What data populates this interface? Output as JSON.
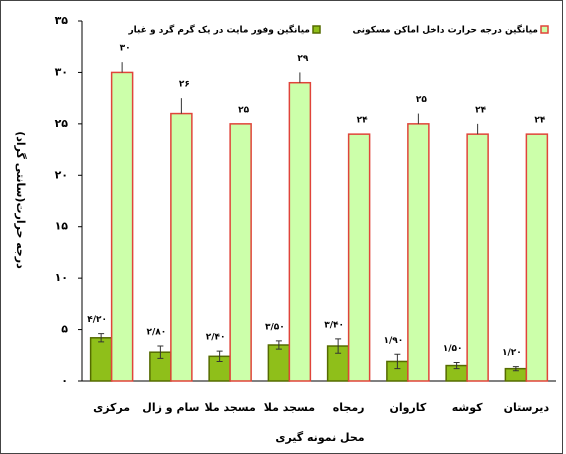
{
  "chart_data": {
    "type": "bar",
    "ylabel": "درجه حرارت(سانتی گراد)",
    "xlabel": "محل نمونه گیری",
    "categories": [
      "مرکزی",
      "سام و زال",
      "مسجد ملا",
      "مسجد ملا",
      "رمجاه",
      "کاروان",
      "کوشه",
      "دیرستان"
    ],
    "series": [
      {
        "name": "میانگین وفور مایت در یک گرم گرد و غبار",
        "color": "#8fbf1a",
        "edge": "#556b00",
        "values": [
          4.2,
          2.8,
          2.4,
          3.5,
          3.4,
          1.9,
          1.5,
          1.2
        ],
        "value_labels": [
          "۴/۲۰",
          "۲/۸۰",
          "۲/۴۰",
          "۳/۵۰",
          "۳/۴۰",
          "۱/۹۰",
          "۱/۵۰",
          "۱/۲۰"
        ],
        "errors": [
          0.4,
          0.6,
          0.5,
          0.4,
          0.7,
          0.7,
          0.3,
          0.2
        ]
      },
      {
        "name": "میانگین درجه حرارت داخل اماکن مسکونی",
        "color": "#ccffaa",
        "edge": "#e0443a",
        "values": [
          30,
          26,
          25,
          29,
          24,
          25,
          24,
          24
        ],
        "value_labels": [
          "۳۰",
          "۲۶",
          "۲۵",
          "۲۹",
          "۲۴",
          "۲۵",
          "۲۴",
          "۲۴"
        ],
        "errors": [
          1,
          1.5,
          0,
          1,
          0,
          1,
          1,
          0
        ]
      }
    ],
    "ylim": [
      0,
      35
    ],
    "yticks": [
      {
        "value": 0,
        "label": "۰"
      },
      {
        "value": 5,
        "label": "۵"
      },
      {
        "value": 10,
        "label": "۱۰"
      },
      {
        "value": 15,
        "label": "۱۵"
      },
      {
        "value": 20,
        "label": "۲۰"
      },
      {
        "value": 25,
        "label": "۲۵"
      },
      {
        "value": 30,
        "label": "۳۰"
      },
      {
        "value": 35,
        "label": "۳۵"
      }
    ],
    "legend": "top-right"
  }
}
